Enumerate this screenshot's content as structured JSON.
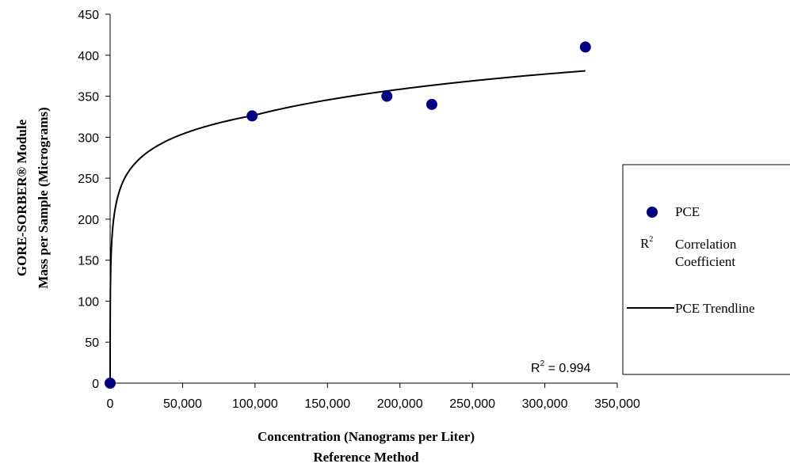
{
  "chart_data": {
    "type": "scatter",
    "xlabel_line1": "Concentration (Nanograms per Liter)",
    "xlabel_line2": "Reference Method",
    "ylabel_line1": "GORE-SORBER® Module",
    "ylabel_line2": "Mass per Sample (Micrograms)",
    "xlim": [
      0,
      350000
    ],
    "ylim": [
      0,
      450
    ],
    "x_ticks": [
      0,
      50000,
      100000,
      150000,
      200000,
      250000,
      300000,
      350000
    ],
    "x_tick_labels": [
      "0",
      "50,000",
      "100,000",
      "150,000",
      "200,000",
      "250,000",
      "300,000",
      "350,000"
    ],
    "y_ticks": [
      0,
      50,
      100,
      150,
      200,
      250,
      300,
      350,
      400,
      450
    ],
    "y_tick_labels": [
      "0",
      "50",
      "100",
      "150",
      "200",
      "250",
      "300",
      "350",
      "400",
      "450"
    ],
    "grid": false,
    "series": [
      {
        "name": "PCE",
        "color": "#000080",
        "x": [
          0,
          98000,
          191000,
          222000,
          328000
        ],
        "y": [
          0,
          326,
          350,
          340,
          410
        ]
      }
    ],
    "trendline": {
      "name": "PCE Trendline",
      "color": "#000000",
      "x_range": [
        1,
        328000
      ],
      "samples": [
        [
          1,
          0
        ],
        [
          10,
          39
        ],
        [
          100,
          92
        ],
        [
          1000,
          169
        ],
        [
          10000,
          250
        ],
        [
          100000,
          327
        ],
        [
          328000,
          381
        ]
      ]
    },
    "r2_annotation": {
      "prefix": "R",
      "superscript": "2",
      "suffix": " = 0.994"
    },
    "legend": {
      "placement": "right",
      "pce_label": "PCE",
      "r2_symbol": "R",
      "r2_superscript": "2",
      "r2_line1": "Correlation",
      "r2_line2": "Coefficient",
      "trend_label": "PCE Trendline"
    }
  }
}
